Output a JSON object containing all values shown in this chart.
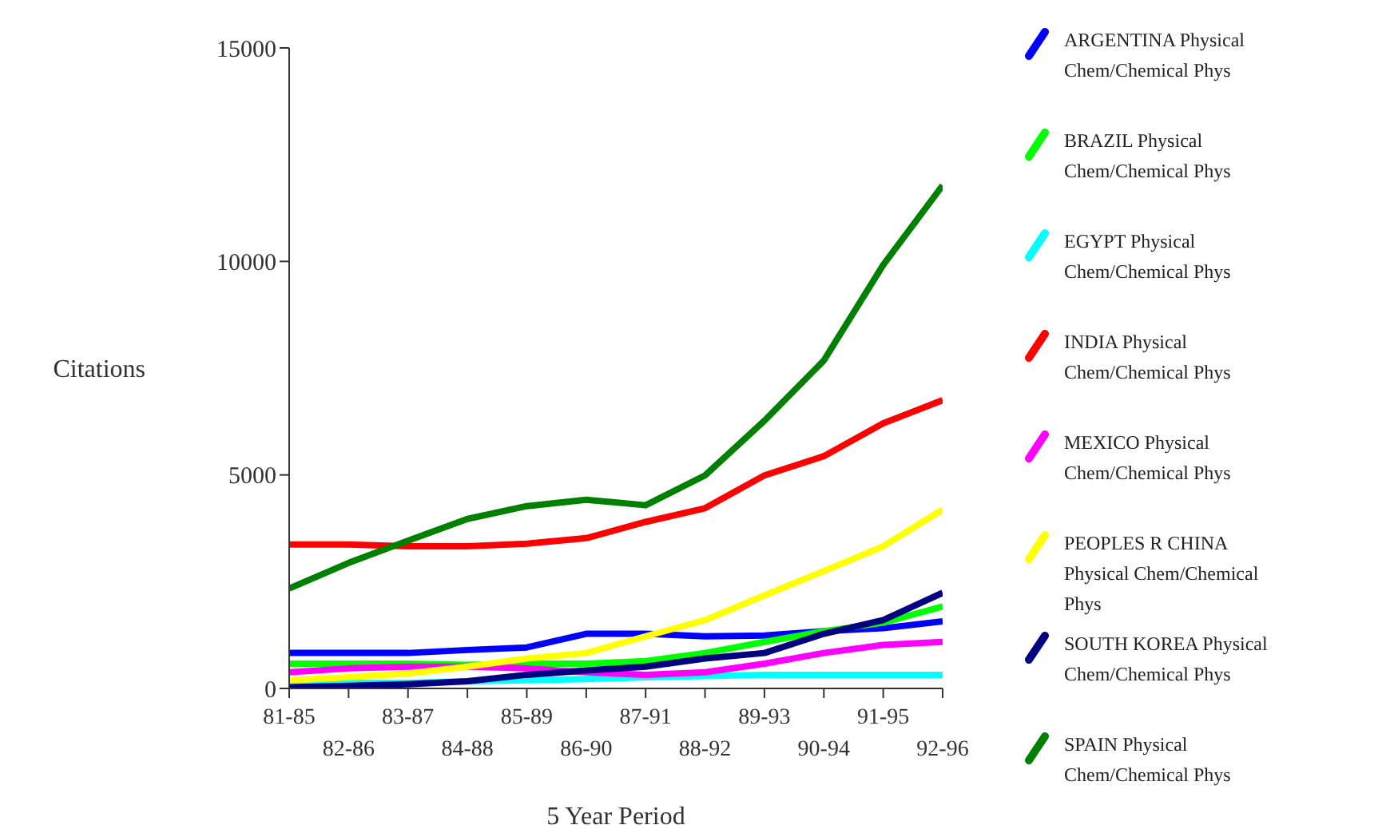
{
  "chart_data": {
    "type": "line",
    "xlabel": "5 Year Period",
    "ylabel": "Citations",
    "categories": [
      "81-85",
      "82-86",
      "83-87",
      "84-88",
      "85-89",
      "86-90",
      "87-91",
      "88-92",
      "89-93",
      "90-94",
      "91-95",
      "92-96"
    ],
    "ylim": [
      0,
      15000
    ],
    "yticks": [
      0,
      5000,
      10000,
      15000
    ],
    "grid": false,
    "legend": "right",
    "marker": "none",
    "line_style": "solid",
    "series": [
      {
        "name": "ARGENTINA Physical Chem/Chemical Phys",
        "color": "#0000ff",
        "values": [
          830,
          830,
          830,
          900,
          960,
          1280,
          1280,
          1220,
          1240,
          1340,
          1410,
          1570
        ]
      },
      {
        "name": "BRAZIL Physical Chem/Chemical Phys",
        "color": "#00ff00",
        "values": [
          580,
          580,
          580,
          550,
          580,
          580,
          640,
          830,
          1090,
          1340,
          1540,
          1920
        ]
      },
      {
        "name": "EGYPT Physical Chem/Chemical Phys",
        "color": "#00ffff",
        "values": [
          130,
          130,
          130,
          170,
          190,
          220,
          260,
          290,
          320,
          320,
          320,
          320
        ]
      },
      {
        "name": "INDIA Physical Chem/Chemical Phys",
        "color": "#ff0000",
        "values": [
          3370,
          3370,
          3330,
          3330,
          3390,
          3520,
          3900,
          4220,
          4990,
          5440,
          6210,
          6750
        ]
      },
      {
        "name": "MEXICO Physical Chem/Chemical Phys",
        "color": "#ff00ff",
        "values": [
          380,
          470,
          510,
          510,
          470,
          380,
          320,
          380,
          580,
          830,
          1020,
          1090
        ]
      },
      {
        "name": "PEOPLES R CHINA Physical Chem/Chemical Phys",
        "color": "#ffff00",
        "values": [
          190,
          260,
          350,
          510,
          700,
          830,
          1220,
          1600,
          2180,
          2750,
          3330,
          4190
        ]
      },
      {
        "name": "SOUTH KOREA Physical Chem/Chemical Phys",
        "color": "#000080",
        "values": [
          30,
          60,
          100,
          170,
          320,
          420,
          510,
          700,
          830,
          1280,
          1600,
          2240
        ]
      },
      {
        "name": "SPAIN Physical Chem/Chemical Phys",
        "color": "#008000",
        "values": [
          2340,
          2940,
          3460,
          3970,
          4270,
          4420,
          4290,
          4990,
          6270,
          7680,
          9920,
          11780
        ]
      }
    ]
  }
}
